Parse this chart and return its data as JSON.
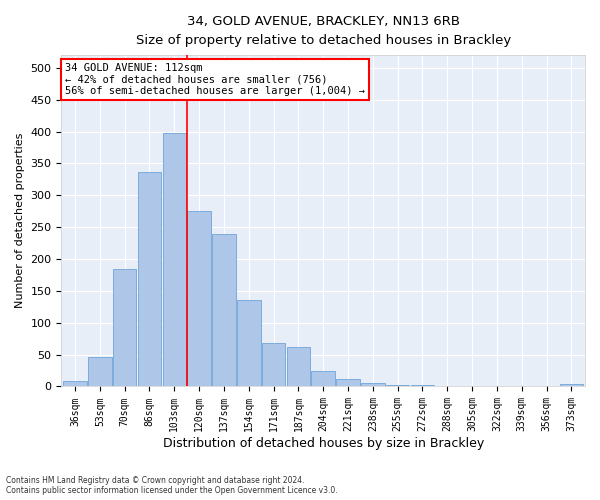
{
  "title": "34, GOLD AVENUE, BRACKLEY, NN13 6RB",
  "subtitle": "Size of property relative to detached houses in Brackley",
  "xlabel": "Distribution of detached houses by size in Brackley",
  "ylabel": "Number of detached properties",
  "categories": [
    "36sqm",
    "53sqm",
    "70sqm",
    "86sqm",
    "103sqm",
    "120sqm",
    "137sqm",
    "154sqm",
    "171sqm",
    "187sqm",
    "204sqm",
    "221sqm",
    "238sqm",
    "255sqm",
    "272sqm",
    "288sqm",
    "305sqm",
    "322sqm",
    "339sqm",
    "356sqm",
    "373sqm"
  ],
  "values": [
    8,
    46,
    184,
    337,
    398,
    275,
    239,
    135,
    68,
    62,
    25,
    11,
    5,
    3,
    2,
    1,
    1,
    1,
    0,
    0,
    4
  ],
  "bar_color": "#aec6e8",
  "bar_edge_color": "#5b9bd5",
  "background_color": "#e8eef8",
  "grid_color": "#ffffff",
  "property_line_label": "34 GOLD AVENUE: 112sqm",
  "annotation_line1": "← 42% of detached houses are smaller (756)",
  "annotation_line2": "56% of semi-detached houses are larger (1,004) →",
  "ylim": [
    0,
    520
  ],
  "yticks": [
    0,
    50,
    100,
    150,
    200,
    250,
    300,
    350,
    400,
    450,
    500
  ],
  "footer_line1": "Contains HM Land Registry data © Crown copyright and database right 2024.",
  "footer_line2": "Contains public sector information licensed under the Open Government Licence v3.0."
}
